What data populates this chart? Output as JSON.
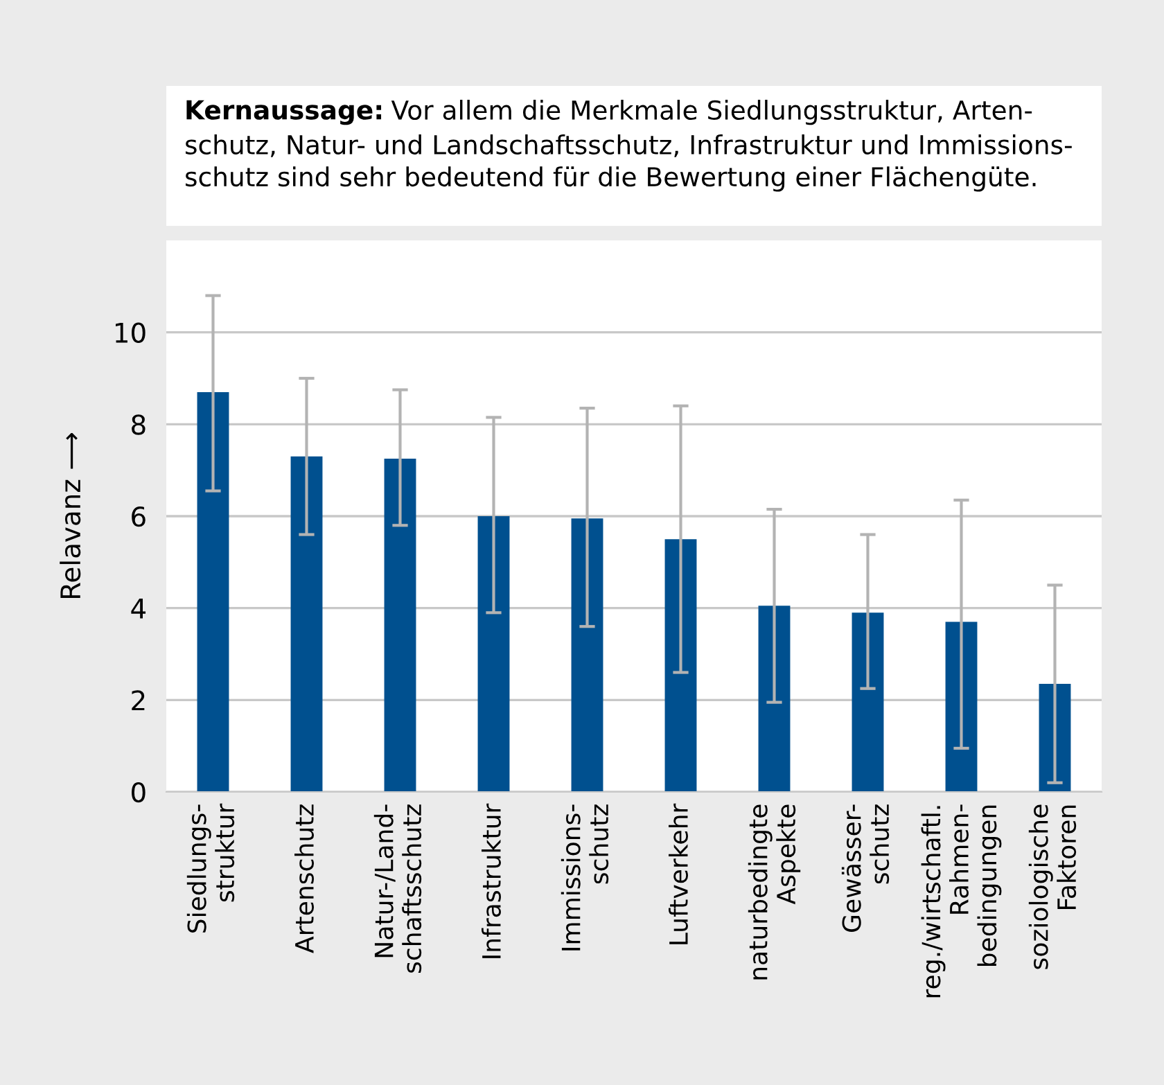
{
  "chart_data": {
    "type": "bar",
    "title": "Kernaussage:",
    "subtitle": "Vor allem die Merkmale Siedlungsstruktur, Arten-\nschutz, Natur- und Landschaftsschutz, Infrastruktur und Immissions-\nschutz sind sehr bedeutend für die Bewertung einer Flächengüte.",
    "ylabel": "Relavanz ⟶",
    "categories": [
      "Siedlungs-\nstruktur",
      "Artenschutz",
      "Natur-/Land-\nschaftsschutz",
      "Infrastruktur",
      "Immissions-\nschutz",
      "Luftverkehr",
      "naturbedingte\nAspekte",
      "Gewässer-\nschutz",
      "reg./wirtschaftl.\nRahmen-\nbedingungen",
      "soziologische\nFaktoren"
    ],
    "values": [
      8.7,
      7.3,
      7.25,
      6.0,
      5.95,
      5.5,
      4.05,
      3.9,
      3.7,
      2.35
    ],
    "errors": [
      [
        6.55,
        10.8
      ],
      [
        5.6,
        9.0
      ],
      [
        5.8,
        8.75
      ],
      [
        3.9,
        8.15
      ],
      [
        3.6,
        8.35
      ],
      [
        2.6,
        8.4
      ],
      [
        1.95,
        6.15
      ],
      [
        2.25,
        5.6
      ],
      [
        0.95,
        6.35
      ],
      [
        0.2,
        4.5
      ]
    ],
    "color": "#00508f",
    "ylim": [
      0,
      12
    ],
    "yticks": [
      0,
      2,
      4,
      6,
      8,
      10
    ],
    "grid": "y"
  }
}
